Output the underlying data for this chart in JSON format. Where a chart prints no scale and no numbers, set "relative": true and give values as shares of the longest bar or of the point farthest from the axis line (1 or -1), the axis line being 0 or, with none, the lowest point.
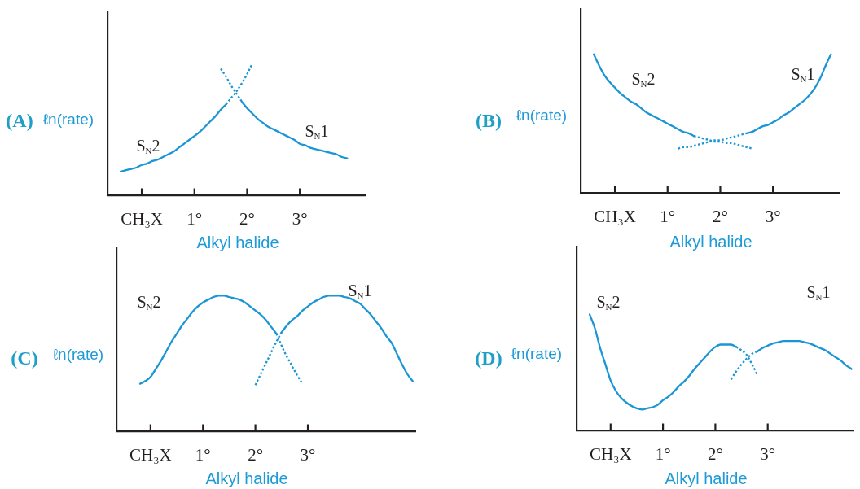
{
  "chart_data": [
    {
      "type": "line",
      "title": "(A)",
      "ylabel": "ℓn(rate)",
      "xlabel": "Alkyl halide",
      "relative": true,
      "categories": [
        null,
        null,
        null,
        null,
        null,
        null,
        "CH₃X",
        null,
        null,
        null,
        null,
        null,
        null,
        null,
        null,
        null,
        "1°",
        null,
        null,
        null,
        null,
        null,
        null,
        null,
        null,
        null,
        "2°",
        null,
        null,
        null,
        null,
        null,
        null,
        null,
        null,
        null,
        "3°",
        null,
        null,
        null,
        null,
        null,
        null,
        null,
        null,
        null,
        null,
        null,
        null
      ],
      "series": [
        {
          "name": "S$_{N}$2",
          "color": "#1a95d5",
          "line_style": "solid",
          "values": [
            null,
            null,
            0.18,
            0.19,
            0.2,
            0.21,
            0.23,
            0.24,
            0.26,
            0.27,
            0.29,
            0.31,
            0.33,
            0.36,
            0.39,
            0.42,
            0.45,
            0.48,
            0.52,
            0.56,
            0.6,
            0.65,
            0.69,
            null,
            null,
            null,
            null,
            null,
            null,
            null,
            null,
            null,
            null,
            null,
            null,
            null,
            null,
            null,
            null,
            null,
            null,
            null,
            null,
            null,
            null,
            null,
            null,
            null,
            null
          ]
        },
        {
          "color": "#1a95d5",
          "line_style": "dotted",
          "values": [
            null,
            null,
            null,
            null,
            null,
            null,
            null,
            null,
            null,
            null,
            null,
            null,
            null,
            null,
            null,
            null,
            null,
            null,
            null,
            null,
            null,
            null,
            0.69,
            0.74,
            0.79,
            0.85,
            0.92,
            1.0,
            null,
            null,
            null,
            null,
            null,
            null,
            null,
            null,
            null,
            null,
            null,
            null,
            null,
            null,
            null,
            null,
            null,
            null,
            null,
            null,
            null
          ]
        },
        {
          "color": "#1a95d5",
          "line_style": "dotted",
          "values": [
            null,
            null,
            null,
            null,
            null,
            null,
            null,
            null,
            null,
            null,
            null,
            null,
            null,
            null,
            null,
            null,
            null,
            null,
            null,
            null,
            null,
            0.96,
            0.9,
            0.83,
            0.77,
            0.71,
            null,
            null,
            null,
            null,
            null,
            null,
            null,
            null,
            null,
            null,
            null,
            null,
            null,
            null,
            null,
            null,
            null,
            null,
            null,
            null,
            null,
            null,
            null
          ]
        },
        {
          "name": "S$_{N}$1",
          "color": "#1a95d5",
          "line_style": "solid",
          "values": [
            null,
            null,
            null,
            null,
            null,
            null,
            null,
            null,
            null,
            null,
            null,
            null,
            null,
            null,
            null,
            null,
            null,
            null,
            null,
            null,
            null,
            null,
            null,
            null,
            null,
            0.71,
            0.66,
            0.62,
            0.58,
            0.55,
            0.52,
            0.5,
            0.48,
            0.46,
            0.44,
            0.42,
            0.39,
            0.38,
            0.36,
            0.35,
            0.34,
            0.33,
            0.32,
            0.31,
            0.29,
            0.28,
            null,
            null,
            null
          ]
        }
      ]
    },
    {
      "type": "line",
      "title": "(B)",
      "ylabel": "ℓn(rate)",
      "xlabel": "Alkyl halide",
      "relative": true,
      "categories": [
        null,
        null,
        null,
        null,
        null,
        null,
        "CH₃X",
        null,
        null,
        null,
        null,
        null,
        null,
        null,
        null,
        null,
        "1°",
        null,
        null,
        null,
        null,
        null,
        null,
        null,
        null,
        null,
        "2°",
        null,
        null,
        null,
        null,
        null,
        null,
        null,
        null,
        null,
        "3°",
        null,
        null,
        null,
        null,
        null,
        null,
        null,
        null,
        null,
        null,
        null,
        null
      ],
      "series": [
        {
          "name": "S$_{N}$2",
          "color": "#1a95d5",
          "line_style": "solid",
          "values": [
            null,
            null,
            1.0,
            0.92,
            0.85,
            0.8,
            0.76,
            0.72,
            0.69,
            0.66,
            0.64,
            0.61,
            0.58,
            0.56,
            0.54,
            0.52,
            0.5,
            0.48,
            0.46,
            0.44,
            0.43,
            0.41,
            null,
            null,
            null,
            null,
            null,
            null,
            null,
            null,
            null,
            null,
            null,
            null,
            null,
            null,
            null,
            null,
            null,
            null,
            null,
            null,
            null,
            null,
            null,
            null,
            null,
            null,
            null
          ]
        },
        {
          "color": "#1a95d5",
          "line_style": "dotted",
          "values": [
            null,
            null,
            null,
            null,
            null,
            null,
            null,
            null,
            null,
            null,
            null,
            null,
            null,
            null,
            null,
            null,
            null,
            null,
            null,
            null,
            null,
            0.41,
            0.4,
            0.39,
            0.38,
            0.37,
            0.37,
            0.36,
            0.36,
            0.35,
            0.34,
            0.33,
            0.32,
            null,
            null,
            null,
            null,
            null,
            null,
            null,
            null,
            null,
            null,
            null,
            null,
            null,
            null,
            null,
            null
          ]
        },
        {
          "color": "#1a95d5",
          "line_style": "dotted",
          "values": [
            null,
            null,
            null,
            null,
            null,
            null,
            null,
            null,
            null,
            null,
            null,
            null,
            null,
            null,
            null,
            null,
            null,
            null,
            0.32,
            0.33,
            0.33,
            0.34,
            0.35,
            0.36,
            0.37,
            0.38,
            0.38,
            0.39,
            0.4,
            0.41,
            0.42,
            0.43,
            null,
            null,
            null,
            null,
            null,
            null,
            null,
            null,
            null,
            null,
            null,
            null,
            null,
            null,
            null,
            null,
            null
          ]
        },
        {
          "name": "S$_{N}$1",
          "color": "#1a95d5",
          "line_style": "solid",
          "values": [
            null,
            null,
            null,
            null,
            null,
            null,
            null,
            null,
            null,
            null,
            null,
            null,
            null,
            null,
            null,
            null,
            null,
            null,
            null,
            null,
            null,
            null,
            null,
            null,
            null,
            null,
            null,
            null,
            null,
            null,
            null,
            0.43,
            0.44,
            0.46,
            0.48,
            0.49,
            0.51,
            0.53,
            0.56,
            0.58,
            0.61,
            0.64,
            0.67,
            0.71,
            0.76,
            0.83,
            0.92,
            1.0,
            null
          ]
        }
      ]
    },
    {
      "type": "line",
      "title": "(C)",
      "ylabel": "ℓn(rate)",
      "xlabel": "Alkyl halide",
      "relative": true,
      "categories": [
        null,
        null,
        null,
        null,
        null,
        null,
        "CH₃X",
        null,
        null,
        null,
        null,
        null,
        null,
        null,
        null,
        null,
        "1°",
        null,
        null,
        null,
        null,
        null,
        null,
        null,
        null,
        null,
        "2°",
        null,
        null,
        null,
        null,
        null,
        null,
        null,
        null,
        null,
        "3°",
        null,
        null,
        null,
        null,
        null,
        null,
        null,
        null,
        null,
        null,
        null,
        null,
        null,
        null,
        null,
        null,
        null,
        null,
        null,
        null
      ],
      "series": [
        {
          "name": "S$_{N}$2",
          "color": "#1a95d5",
          "line_style": "solid",
          "values": [
            null,
            null,
            null,
            null,
            0.35,
            0.37,
            0.4,
            0.46,
            0.52,
            0.59,
            0.66,
            0.72,
            0.78,
            0.83,
            0.88,
            0.92,
            0.95,
            0.97,
            0.99,
            1.0,
            1.0,
            0.99,
            0.98,
            0.97,
            0.95,
            0.92,
            0.89,
            0.86,
            0.82,
            0.77,
            0.72,
            null,
            null,
            null,
            null,
            null,
            null,
            null,
            null,
            null,
            null,
            null,
            null,
            null,
            null,
            null,
            null,
            null,
            null,
            null,
            null,
            null,
            null,
            null,
            null,
            null,
            null
          ]
        },
        {
          "color": "#1a95d5",
          "line_style": "dotted",
          "values": [
            null,
            null,
            null,
            null,
            null,
            null,
            null,
            null,
            null,
            null,
            null,
            null,
            null,
            null,
            null,
            null,
            null,
            null,
            null,
            null,
            null,
            null,
            null,
            null,
            null,
            null,
            null,
            null,
            null,
            null,
            0.72,
            0.63,
            0.55,
            0.48,
            0.41,
            0.35,
            null,
            null,
            null,
            null,
            null,
            null,
            null,
            null,
            null,
            null,
            null,
            null,
            null,
            null,
            null,
            null,
            null,
            null,
            null,
            null,
            null
          ]
        },
        {
          "color": "#1a95d5",
          "line_style": "dotted",
          "values": [
            null,
            null,
            null,
            null,
            null,
            null,
            null,
            null,
            null,
            null,
            null,
            null,
            null,
            null,
            null,
            null,
            null,
            null,
            null,
            null,
            null,
            null,
            null,
            null,
            null,
            null,
            0.34,
            0.42,
            0.5,
            0.58,
            0.66,
            0.73,
            null,
            null,
            null,
            null,
            null,
            null,
            null,
            null,
            null,
            null,
            null,
            null,
            null,
            null,
            null,
            null,
            null,
            null,
            null,
            null,
            null,
            null,
            null,
            null,
            null
          ]
        },
        {
          "name": "S$_{N}$1",
          "color": "#1a95d5",
          "line_style": "solid",
          "values": [
            null,
            null,
            null,
            null,
            null,
            null,
            null,
            null,
            null,
            null,
            null,
            null,
            null,
            null,
            null,
            null,
            null,
            null,
            null,
            null,
            null,
            null,
            null,
            null,
            null,
            null,
            null,
            null,
            null,
            null,
            null,
            0.73,
            0.78,
            0.82,
            0.85,
            0.89,
            0.92,
            0.95,
            0.97,
            0.99,
            1.0,
            1.0,
            1.0,
            0.99,
            0.98,
            0.96,
            0.94,
            0.9,
            0.86,
            0.81,
            0.76,
            0.7,
            0.65,
            0.57,
            0.49,
            0.42,
            0.37
          ]
        }
      ]
    },
    {
      "type": "line",
      "title": "(D)",
      "ylabel": "ℓn(rate)",
      "xlabel": "Alkyl halide",
      "relative": true,
      "categories": [
        null,
        null,
        null,
        null,
        null,
        null,
        "CH₃X",
        null,
        null,
        null,
        null,
        null,
        null,
        null,
        null,
        null,
        "1°",
        null,
        null,
        null,
        null,
        null,
        null,
        null,
        null,
        null,
        "2°",
        null,
        null,
        null,
        null,
        null,
        null,
        null,
        null,
        null,
        "3°",
        null,
        null,
        null,
        null,
        null,
        null,
        null,
        null,
        null,
        null,
        null,
        null,
        null,
        null,
        null,
        null
      ],
      "series": [
        {
          "name": "S$_{N}$2",
          "color": "#1a95d5",
          "line_style": "solid",
          "values": [
            null,
            null,
            1.0,
            0.88,
            0.71,
            0.57,
            0.43,
            0.34,
            0.28,
            0.24,
            0.21,
            0.19,
            0.18,
            0.19,
            0.2,
            0.22,
            0.26,
            0.29,
            0.33,
            0.38,
            0.42,
            0.47,
            0.53,
            0.58,
            0.63,
            0.68,
            0.72,
            0.74,
            0.74,
            0.74,
            0.72,
            null,
            null,
            null,
            null,
            null,
            null,
            null,
            null,
            null,
            null,
            null,
            null,
            null,
            null,
            null,
            null,
            null,
            null,
            null,
            null,
            null,
            null
          ]
        },
        {
          "color": "#1a95d5",
          "line_style": "dotted",
          "values": [
            null,
            null,
            null,
            null,
            null,
            null,
            null,
            null,
            null,
            null,
            null,
            null,
            null,
            null,
            null,
            null,
            null,
            null,
            null,
            null,
            null,
            null,
            null,
            null,
            null,
            null,
            null,
            null,
            null,
            null,
            0.72,
            0.69,
            0.65,
            0.57,
            0.48,
            null,
            null,
            null,
            null,
            null,
            null,
            null,
            null,
            null,
            null,
            null,
            null,
            null,
            null,
            null,
            null,
            null,
            null
          ]
        },
        {
          "color": "#1a95d5",
          "line_style": "dotted",
          "values": [
            null,
            null,
            null,
            null,
            null,
            null,
            null,
            null,
            null,
            null,
            null,
            null,
            null,
            null,
            null,
            null,
            null,
            null,
            null,
            null,
            null,
            null,
            null,
            null,
            null,
            null,
            null,
            null,
            null,
            0.44,
            0.51,
            0.57,
            0.62,
            0.66,
            0.68,
            null,
            null,
            null,
            null,
            null,
            null,
            null,
            null,
            null,
            null,
            null,
            null,
            null,
            null,
            null,
            null,
            null,
            null
          ]
        },
        {
          "name": "S$_{N}$1",
          "color": "#1a95d5",
          "line_style": "solid",
          "values": [
            null,
            null,
            null,
            null,
            null,
            null,
            null,
            null,
            null,
            null,
            null,
            null,
            null,
            null,
            null,
            null,
            null,
            null,
            null,
            null,
            null,
            null,
            null,
            null,
            null,
            null,
            null,
            null,
            null,
            null,
            null,
            null,
            null,
            null,
            0.68,
            0.71,
            0.73,
            0.75,
            0.76,
            0.77,
            0.77,
            0.77,
            0.77,
            0.76,
            0.75,
            0.73,
            0.71,
            0.69,
            0.66,
            0.63,
            0.6,
            0.56,
            0.53
          ]
        }
      ]
    }
  ]
}
